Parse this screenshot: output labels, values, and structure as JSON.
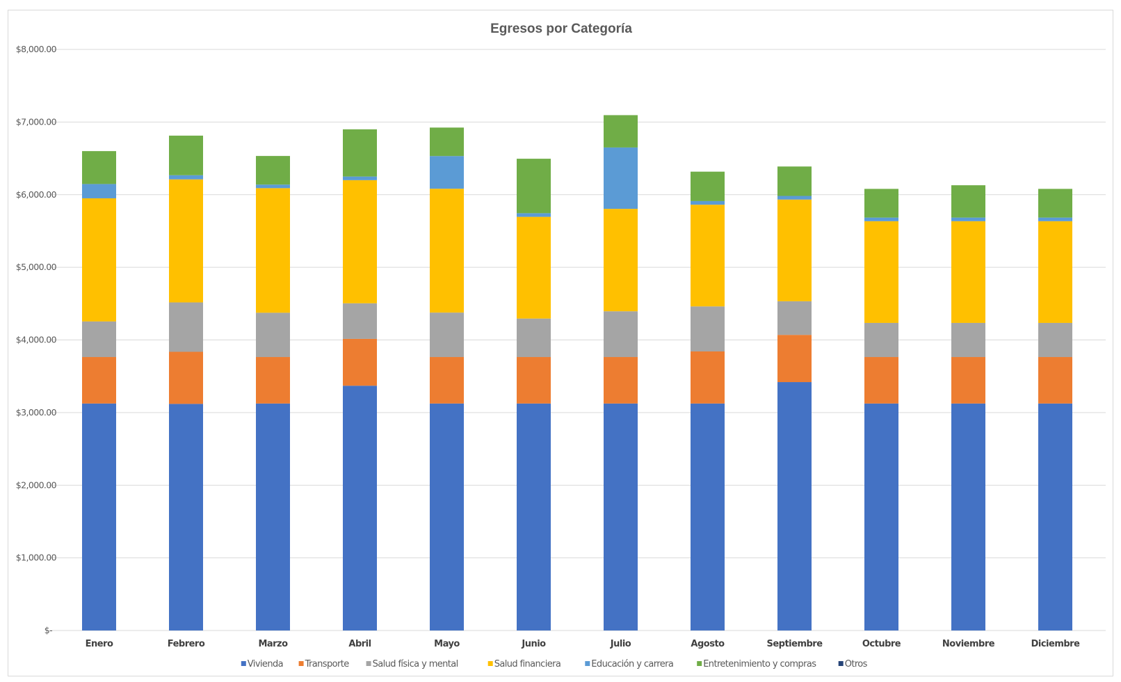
{
  "chart_data": {
    "type": "bar",
    "stacked": true,
    "title": "Egresos por Categoría",
    "xlabel": "",
    "ylabel": "",
    "ylim": [
      0,
      8000
    ],
    "yticks": [
      0,
      1000,
      2000,
      3000,
      4000,
      5000,
      6000,
      7000,
      8000
    ],
    "ytick_labels": [
      "$-",
      "$1,000.00",
      "$2,000.00",
      "$3,000.00",
      "$4,000.00",
      "$5,000.00",
      "$6,000.00",
      "$7,000.00",
      "$8,000.00"
    ],
    "grid": true,
    "legend_position": "bottom",
    "categories": [
      "Enero",
      "Febrero",
      "Marzo",
      "Abril",
      "Mayo",
      "Junio",
      "Julio",
      "Agosto",
      "Septiembre",
      "Octubre",
      "Noviembre",
      "Diciembre"
    ],
    "series": [
      {
        "name": "Vivienda",
        "color": "#4472C4",
        "values": [
          3125,
          3120,
          3125,
          3370,
          3125,
          3125,
          3125,
          3125,
          3420,
          3125,
          3125,
          3125
        ]
      },
      {
        "name": "Transporte",
        "color": "#ED7D31",
        "values": [
          640,
          717,
          640,
          645,
          640,
          640,
          640,
          717,
          650,
          640,
          640,
          640
        ]
      },
      {
        "name": "Salud física y mental",
        "color": "#A5A5A5",
        "values": [
          490,
          680,
          610,
          490,
          612,
          530,
          630,
          620,
          463,
          470,
          470,
          470
        ]
      },
      {
        "name": "Salud financiera",
        "color": "#FFC000",
        "values": [
          1695,
          1694,
          1715,
          1695,
          1705,
          1400,
          1410,
          1400,
          1400,
          1400,
          1400,
          1400
        ]
      },
      {
        "name": "Educación y carrera",
        "color": "#5B9BD5",
        "values": [
          197,
          57,
          49,
          50,
          450,
          50,
          845,
          50,
          50,
          50,
          50,
          50
        ]
      },
      {
        "name": "Entretenimiento y compras",
        "color": "#70AD47",
        "values": [
          453,
          545,
          394,
          650,
          392,
          750,
          445,
          405,
          405,
          395,
          445,
          395
        ]
      },
      {
        "name": "Otros",
        "color": "#264478",
        "values": [
          0,
          0,
          0,
          0,
          0,
          0,
          0,
          0,
          0,
          0,
          0,
          0
        ]
      }
    ]
  }
}
